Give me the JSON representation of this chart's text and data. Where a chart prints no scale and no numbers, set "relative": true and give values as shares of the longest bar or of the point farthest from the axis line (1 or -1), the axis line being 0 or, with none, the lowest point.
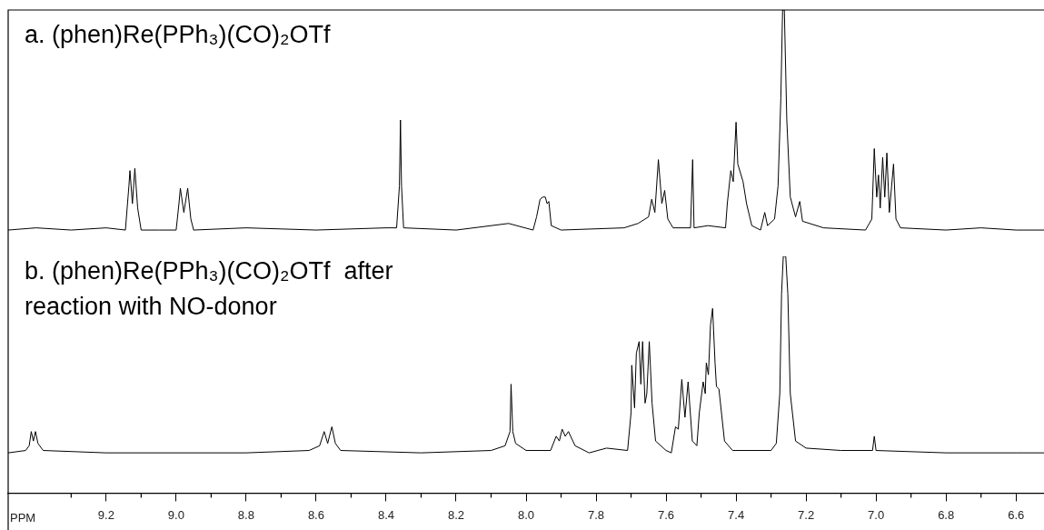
{
  "chart_data": [
    {
      "type": "line",
      "title": "a. (phen)Re(PPh₃)(CO)₂OTf",
      "relative": true,
      "xlim": [
        9.48,
        6.52
      ],
      "tick_labels": false,
      "series": [
        {
          "color": "#000000",
          "x": [
            9.48,
            9.4,
            9.3,
            9.2,
            9.145,
            9.135,
            9.132,
            9.125,
            9.118,
            9.11,
            9.1,
            9.05,
            9.0,
            8.992,
            8.988,
            8.978,
            8.967,
            8.958,
            8.95,
            8.8,
            8.6,
            8.4,
            8.37,
            8.362,
            8.359,
            8.356,
            8.35,
            8.2,
            8.05,
            7.98,
            7.97,
            7.96,
            7.952,
            7.945,
            7.94,
            7.935,
            7.928,
            7.9,
            7.72,
            7.68,
            7.65,
            7.641,
            7.632,
            7.622,
            7.612,
            7.604,
            7.595,
            7.58,
            7.53,
            7.524,
            7.52,
            7.48,
            7.43,
            7.425,
            7.415,
            7.408,
            7.4,
            7.395,
            7.38,
            7.37,
            7.355,
            7.33,
            7.318,
            7.31,
            7.29,
            7.28,
            7.272,
            7.267,
            7.262,
            7.255,
            7.245,
            7.23,
            7.218,
            7.21,
            7.15,
            7.03,
            7.012,
            7.005,
            6.998,
            6.993,
            6.988,
            6.981,
            6.975,
            6.969,
            6.962,
            6.95,
            6.943,
            6.93,
            6.8,
            6.7,
            6.6,
            6.52
          ],
          "values": [
            0,
            0.01,
            0,
            0.01,
            0,
            0.2,
            0.27,
            0.12,
            0.28,
            0.1,
            0,
            0,
            0,
            0.12,
            0.19,
            0.08,
            0.19,
            0.05,
            0,
            0.01,
            0,
            0.01,
            0.01,
            0.2,
            0.5,
            0.2,
            0.01,
            0,
            0.03,
            0,
            0.06,
            0.14,
            0.15,
            0.15,
            0.12,
            0.13,
            0.02,
            0,
            0.01,
            0.03,
            0.06,
            0.14,
            0.08,
            0.32,
            0.12,
            0.18,
            0.05,
            0.01,
            0.01,
            0.32,
            0.01,
            0.02,
            0.01,
            0.12,
            0.27,
            0.22,
            0.49,
            0.3,
            0.22,
            0.12,
            0.02,
            0,
            0.08,
            0.02,
            0.05,
            0.2,
            0.6,
            1,
            1,
            0.5,
            0.15,
            0.06,
            0.13,
            0.04,
            0.01,
            0,
            0.05,
            0.37,
            0.15,
            0.25,
            0.1,
            0.33,
            0.15,
            0.35,
            0.08,
            0.3,
            0.05,
            0.01,
            0,
            0.01,
            0,
            0
          ]
        }
      ]
    },
    {
      "type": "line",
      "title": "b. (phen)Re(PPh₃)(CO)₂OTf  after reaction with NO-donor",
      "xlabel": "PPM",
      "relative": true,
      "xlim": [
        9.48,
        6.52
      ],
      "tick_labels": "x",
      "xticks": [
        {
          "value": 9.3,
          "label": null
        },
        9.2,
        {
          "value": 9.1,
          "label": null
        },
        {
          "value": 9,
          "label": "9.0"
        },
        {
          "value": 8.9,
          "label": null
        },
        8.8,
        {
          "value": 8.7,
          "label": null
        },
        8.6,
        {
          "value": 8.5,
          "label": null
        },
        8.4,
        {
          "value": 8.3,
          "label": null
        },
        8.2,
        {
          "value": 8.1,
          "label": null
        },
        {
          "value": 8,
          "label": "8.0"
        },
        {
          "value": 7.9,
          "label": null
        },
        7.8,
        {
          "value": 7.7,
          "label": null
        },
        7.6,
        {
          "value": 7.5,
          "label": null
        },
        7.4,
        {
          "value": 7.3,
          "label": null
        },
        7.2,
        {
          "value": 7.1,
          "label": null
        },
        {
          "value": 7,
          "label": "7.0"
        },
        {
          "value": 6.9,
          "label": null
        },
        6.8,
        {
          "value": 6.7,
          "label": null
        },
        6.6
      ],
      "series": [
        {
          "color": "#000000",
          "x": [
            9.48,
            9.43,
            9.42,
            9.414,
            9.408,
            9.402,
            9.395,
            9.38,
            9.2,
            9.0,
            8.8,
            8.62,
            8.59,
            8.577,
            8.567,
            8.555,
            8.545,
            8.53,
            8.3,
            8.1,
            8.06,
            8.046,
            8.043,
            8.038,
            8.03,
            8.0,
            7.93,
            7.914,
            7.905,
            7.897,
            7.888,
            7.879,
            7.86,
            7.82,
            7.77,
            7.71,
            7.7,
            7.698,
            7.69,
            7.685,
            7.677,
            7.672,
            7.667,
            7.66,
            7.655,
            7.648,
            7.64,
            7.63,
            7.6,
            7.585,
            7.573,
            7.565,
            7.555,
            7.546,
            7.537,
            7.525,
            7.512,
            7.505,
            7.494,
            7.488,
            7.485,
            7.479,
            7.473,
            7.467,
            7.46,
            7.456,
            7.449,
            7.433,
            7.41,
            7.3,
            7.285,
            7.275,
            7.27,
            7.265,
            7.258,
            7.252,
            7.245,
            7.23,
            7.2,
            7.1,
            7.01,
            7.005,
            7.0,
            6.8,
            6.6,
            6.52
          ],
          "values": [
            0.17,
            0.18,
            0.2,
            0.26,
            0.22,
            0.26,
            0.21,
            0.18,
            0.17,
            0.17,
            0.17,
            0.18,
            0.2,
            0.26,
            0.21,
            0.28,
            0.21,
            0.18,
            0.17,
            0.18,
            0.2,
            0.26,
            0.46,
            0.26,
            0.21,
            0.18,
            0.18,
            0.24,
            0.22,
            0.27,
            0.24,
            0.26,
            0.2,
            0.17,
            0.19,
            0.18,
            0.34,
            0.54,
            0.36,
            0.59,
            0.64,
            0.46,
            0.64,
            0.38,
            0.42,
            0.64,
            0.38,
            0.22,
            0.18,
            0.17,
            0.28,
            0.27,
            0.48,
            0.32,
            0.47,
            0.22,
            0.2,
            0.34,
            0.47,
            0.42,
            0.55,
            0.5,
            0.71,
            0.78,
            0.55,
            0.45,
            0.44,
            0.22,
            0.18,
            0.18,
            0.21,
            0.42,
            0.84,
            1,
            1,
            0.84,
            0.42,
            0.22,
            0.19,
            0.18,
            0.18,
            0.24,
            0.18,
            0.17,
            0.17,
            0.17
          ]
        }
      ]
    }
  ]
}
